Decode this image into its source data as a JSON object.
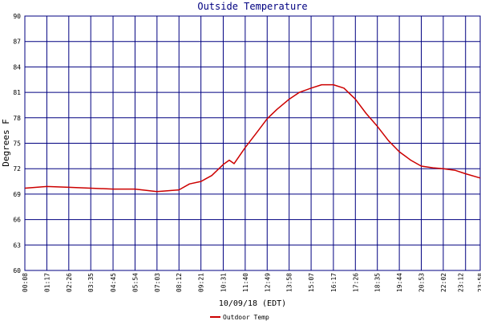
{
  "chart_data": {
    "type": "line",
    "title": "Outside Temperature",
    "ylabel": "Degrees F",
    "xlabel": "10/09/18 (EDT)",
    "ylim": [
      60,
      90
    ],
    "yticks": [
      "60",
      "63",
      "66",
      "69",
      "72",
      "75",
      "78",
      "81",
      "84",
      "87",
      "90"
    ],
    "xticks": [
      "00:08",
      "01:17",
      "02:26",
      "03:35",
      "04:45",
      "05:54",
      "07:03",
      "08:12",
      "09:21",
      "10:31",
      "11:40",
      "12:49",
      "13:58",
      "15:07",
      "16:17",
      "17:26",
      "18:35",
      "19:44",
      "20:53",
      "22:02",
      "23:12",
      "23:58"
    ],
    "grid": true,
    "colors": {
      "series": "#cc0000",
      "grid": "#000080",
      "title": "#000080"
    },
    "series": [
      {
        "name": "Outdoor Temp",
        "x": [
          "00:08",
          "01:17",
          "02:26",
          "03:35",
          "04:45",
          "05:54",
          "07:03",
          "08:12",
          "08:45",
          "09:21",
          "09:55",
          "10:31",
          "10:50",
          "11:05",
          "11:40",
          "12:15",
          "12:49",
          "13:20",
          "13:58",
          "14:30",
          "15:07",
          "15:40",
          "16:17",
          "16:50",
          "17:26",
          "18:00",
          "18:35",
          "19:10",
          "19:44",
          "20:20",
          "20:53",
          "21:30",
          "22:02",
          "22:40",
          "23:12",
          "23:58"
        ],
        "values": [
          69.7,
          69.9,
          69.8,
          69.7,
          69.6,
          69.6,
          69.3,
          69.5,
          70.2,
          70.5,
          71.2,
          72.5,
          73.0,
          72.6,
          74.5,
          76.2,
          77.9,
          79.0,
          80.2,
          81.0,
          81.5,
          81.9,
          81.9,
          81.5,
          80.2,
          78.5,
          77.0,
          75.3,
          74.0,
          73.0,
          72.3,
          72.1,
          72.0,
          71.8,
          71.4,
          70.9
        ]
      }
    ],
    "legend": {
      "position": "bottom-center"
    }
  }
}
